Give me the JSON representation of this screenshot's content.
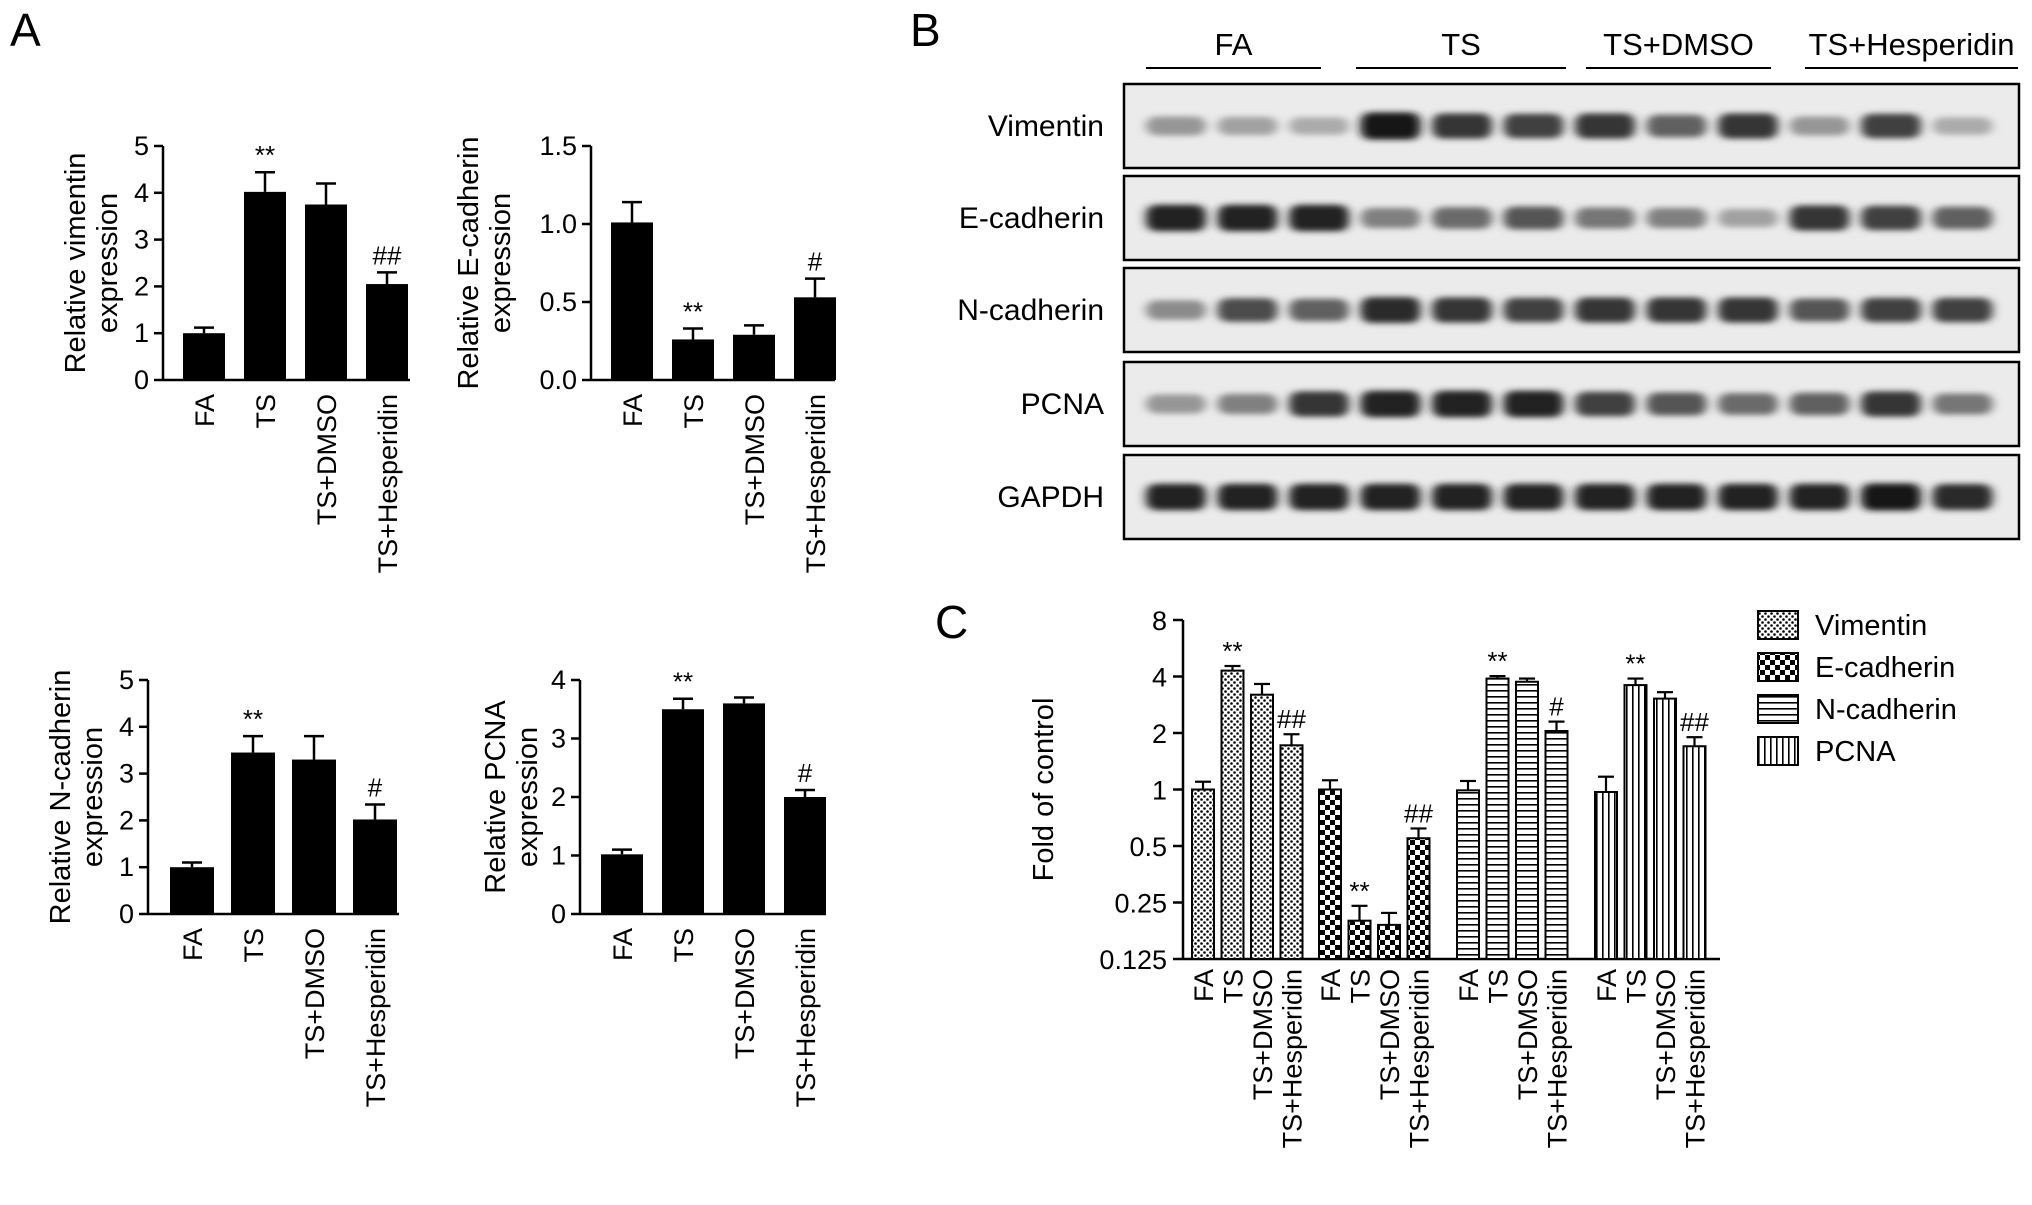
{
  "panels": {
    "a": "A",
    "b": "B",
    "c": "C"
  },
  "chart_data": [
    {
      "type": "bar",
      "panel": "A",
      "ylabel": [
        "Relative vimentin",
        "expression"
      ],
      "categories": [
        "FA",
        "TS",
        "TS+DMSO",
        "TS+Hesperidin"
      ],
      "values": [
        1.0,
        4.02,
        3.75,
        2.05
      ],
      "errors": [
        0.12,
        0.42,
        0.45,
        0.25
      ],
      "annotations": [
        "",
        "**",
        "",
        "##"
      ],
      "ylim": [
        0,
        5
      ],
      "yticks": [
        0,
        1,
        2,
        3,
        4,
        5
      ],
      "ytick_labels": [
        "0",
        "1",
        "2",
        "3",
        "4",
        "5"
      ]
    },
    {
      "type": "bar",
      "panel": "A",
      "ylabel": [
        "Relative E-cadherin",
        "expression"
      ],
      "categories": [
        "FA",
        "TS",
        "TS+DMSO",
        "TS+Hesperidin"
      ],
      "values": [
        1.01,
        0.26,
        0.29,
        0.53
      ],
      "errors": [
        0.13,
        0.07,
        0.06,
        0.12
      ],
      "annotations": [
        "",
        "**",
        "",
        "#"
      ],
      "ylim": [
        0,
        1.5
      ],
      "yticks": [
        0,
        0.5,
        1.0,
        1.5
      ],
      "ytick_labels": [
        "0.0",
        "0.5",
        "1.0",
        "1.5"
      ]
    },
    {
      "type": "bar",
      "panel": "A",
      "ylabel": [
        "Relative N-cadherin",
        "expression"
      ],
      "categories": [
        "FA",
        "TS",
        "TS+DMSO",
        "TS+Hesperidin"
      ],
      "values": [
        1.0,
        3.45,
        3.3,
        2.02
      ],
      "errors": [
        0.1,
        0.35,
        0.5,
        0.32
      ],
      "annotations": [
        "",
        "**",
        "",
        "#"
      ],
      "ylim": [
        0,
        5
      ],
      "yticks": [
        0,
        1,
        2,
        3,
        4,
        5
      ],
      "ytick_labels": [
        "0",
        "1",
        "2",
        "3",
        "4",
        "5"
      ]
    },
    {
      "type": "bar",
      "panel": "A",
      "ylabel": [
        "Relative PCNA",
        "expression"
      ],
      "categories": [
        "FA",
        "TS",
        "TS+DMSO",
        "TS+Hesperidin"
      ],
      "values": [
        1.02,
        3.5,
        3.6,
        2.0
      ],
      "errors": [
        0.08,
        0.18,
        0.1,
        0.12
      ],
      "annotations": [
        "",
        "**",
        "",
        "#"
      ],
      "ylim": [
        0,
        4
      ],
      "yticks": [
        0,
        1,
        2,
        3,
        4
      ],
      "ytick_labels": [
        "0",
        "1",
        "2",
        "3",
        "4"
      ]
    },
    {
      "type": "bar",
      "panel": "C",
      "ylabel": [
        "Fold of control"
      ],
      "yscale": "log2",
      "ylim": [
        0.125,
        8
      ],
      "yticks": [
        0.125,
        0.25,
        0.5,
        1,
        2,
        4,
        8
      ],
      "ytick_labels": [
        "0.125",
        "0.25",
        "0.5",
        "1",
        "2",
        "4",
        "8"
      ],
      "categories": [
        "FA",
        "TS",
        "TS+DMSO",
        "TS+Hesperidin"
      ],
      "legend_position": "right",
      "series": [
        {
          "name": "Vimentin",
          "pattern": "dots",
          "values": [
            1.0,
            4.3,
            3.2,
            1.72
          ],
          "errors": [
            0.1,
            0.25,
            0.45,
            0.25
          ],
          "annotations": [
            "",
            "**",
            "",
            "##"
          ]
        },
        {
          "name": "E-cadherin",
          "pattern": "checker",
          "values": [
            1.0,
            0.2,
            0.19,
            0.55
          ],
          "errors": [
            0.12,
            0.04,
            0.03,
            0.07
          ],
          "annotations": [
            "",
            "**",
            "",
            "##"
          ]
        },
        {
          "name": "N-cadherin",
          "pattern": "hlines",
          "values": [
            0.99,
            3.9,
            3.75,
            2.05
          ],
          "errors": [
            0.12,
            0.12,
            0.15,
            0.25
          ],
          "annotations": [
            "",
            "**",
            "",
            "#"
          ]
        },
        {
          "name": "PCNA",
          "pattern": "vlines",
          "values": [
            0.97,
            3.6,
            3.05,
            1.7
          ],
          "errors": [
            0.2,
            0.3,
            0.25,
            0.2
          ],
          "annotations": [
            "",
            "**",
            "",
            "##"
          ]
        }
      ]
    }
  ],
  "blot": {
    "groups": [
      "FA",
      "TS",
      "TS+DMSO",
      "TS+Hesperidin"
    ],
    "rows": [
      {
        "label": "Vimentin",
        "intensities": [
          0.35,
          0.3,
          0.25,
          0.95,
          0.8,
          0.75,
          0.8,
          0.6,
          0.8,
          0.35,
          0.75,
          0.25
        ]
      },
      {
        "label": "E-cadherin",
        "intensities": [
          0.9,
          0.9,
          0.9,
          0.45,
          0.55,
          0.65,
          0.5,
          0.45,
          0.3,
          0.8,
          0.75,
          0.6
        ]
      },
      {
        "label": "N-cadherin",
        "intensities": [
          0.4,
          0.7,
          0.6,
          0.85,
          0.8,
          0.75,
          0.8,
          0.8,
          0.8,
          0.65,
          0.75,
          0.75
        ]
      },
      {
        "label": "PCNA",
        "intensities": [
          0.35,
          0.45,
          0.8,
          0.9,
          0.9,
          0.9,
          0.75,
          0.65,
          0.55,
          0.6,
          0.8,
          0.5
        ]
      },
      {
        "label": "GAPDH",
        "intensities": [
          0.9,
          0.9,
          0.9,
          0.9,
          0.9,
          0.9,
          0.9,
          0.9,
          0.9,
          0.9,
          0.95,
          0.85
        ]
      }
    ]
  }
}
